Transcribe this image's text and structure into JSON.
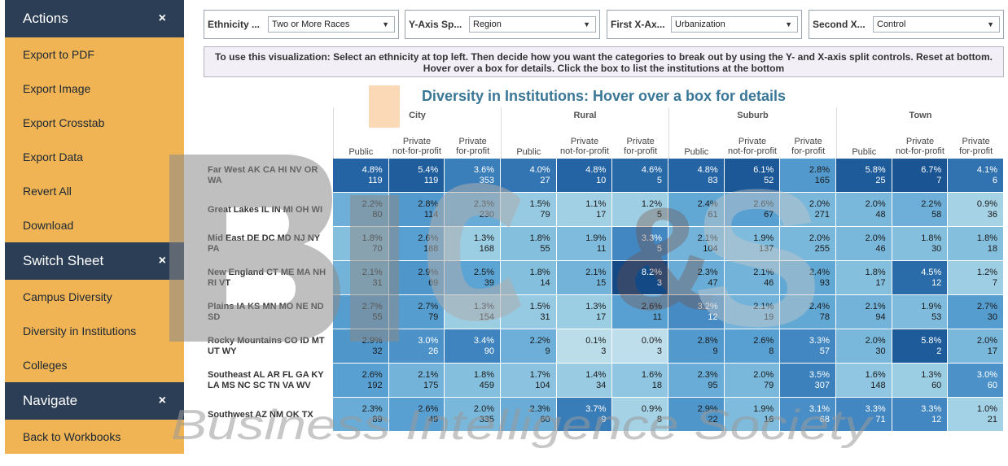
{
  "sidebar": {
    "sections": [
      {
        "title": "Actions",
        "items": [
          "Export to PDF",
          "Export Image",
          "Export Crosstab",
          "Export Data",
          "Revert All",
          "Download"
        ]
      },
      {
        "title": "Switch Sheet",
        "items": [
          "Campus Diversity",
          "Diversity in Institutions",
          "Colleges"
        ]
      },
      {
        "title": "Navigate",
        "items": [
          "Back to Workbooks"
        ]
      }
    ],
    "close_glyph": "×"
  },
  "controls": [
    {
      "label": "Ethnicity ...",
      "value": "Two or More Races"
    },
    {
      "label": "Y-Axis Sp...",
      "value": "Region"
    },
    {
      "label": "First X-Ax...",
      "value": "Urbanization"
    },
    {
      "label": "Second X...",
      "value": "Control"
    }
  ],
  "instructions": "To use this visualization: Select an ethnicity at top left.  Then decide how you want the categories to break out by using the Y- and X-axis split controls.  Reset at bottom.  Hover over a box for details.  Click the box to list the institutions at the bottom",
  "title": "Diversity in Institutions: Hover over a box for details",
  "groups": [
    "City",
    "Rural",
    "Suburb",
    "Town"
  ],
  "subcolumns": [
    [
      "Public"
    ],
    [
      "Private",
      "not-for-profit"
    ],
    [
      "Private",
      "for-profit"
    ]
  ],
  "rows": [
    {
      "label": "Far West AK CA HI NV OR WA",
      "cells": [
        [
          "4.8%",
          "119"
        ],
        [
          "5.4%",
          "119"
        ],
        [
          "3.6%",
          "353"
        ],
        [
          "4.0%",
          "27"
        ],
        [
          "4.8%",
          "10"
        ],
        [
          "4.6%",
          "5"
        ],
        [
          "4.8%",
          "83"
        ],
        [
          "6.1%",
          "52"
        ],
        [
          "2.8%",
          "165"
        ],
        [
          "5.8%",
          "25"
        ],
        [
          "6.7%",
          "7"
        ],
        [
          "4.1%",
          "6"
        ]
      ]
    },
    {
      "label": "Great Lakes IL IN MI OH WI",
      "cells": [
        [
          "2.2%",
          "80"
        ],
        [
          "2.8%",
          "114"
        ],
        [
          "2.3%",
          "230"
        ],
        [
          "1.5%",
          "79"
        ],
        [
          "1.1%",
          "17"
        ],
        [
          "1.2%",
          "5"
        ],
        [
          "2.4%",
          "61"
        ],
        [
          "2.6%",
          "67"
        ],
        [
          "2.0%",
          "271"
        ],
        [
          "2.0%",
          "48"
        ],
        [
          "2.2%",
          "58"
        ],
        [
          "0.9%",
          "36"
        ]
      ]
    },
    {
      "label": "Mid East DE DC MD NJ NY PA",
      "cells": [
        [
          "1.8%",
          "70"
        ],
        [
          "2.6%",
          "188"
        ],
        [
          "1.3%",
          "168"
        ],
        [
          "1.8%",
          "55"
        ],
        [
          "1.9%",
          "11"
        ],
        [
          "3.3%",
          "5"
        ],
        [
          "2.1%",
          "104"
        ],
        [
          "1.9%",
          "137"
        ],
        [
          "2.0%",
          "255"
        ],
        [
          "2.0%",
          "46"
        ],
        [
          "1.8%",
          "30"
        ],
        [
          "1.8%",
          "18"
        ]
      ]
    },
    {
      "label": "New England CT ME MA NH RI VT",
      "cells": [
        [
          "2.1%",
          "31"
        ],
        [
          "2.9%",
          "69"
        ],
        [
          "2.5%",
          "39"
        ],
        [
          "1.8%",
          "14"
        ],
        [
          "2.1%",
          "15"
        ],
        [
          "8.2%",
          "3"
        ],
        [
          "2.3%",
          "47"
        ],
        [
          "2.1%",
          "46"
        ],
        [
          "2.4%",
          "93"
        ],
        [
          "1.8%",
          "17"
        ],
        [
          "4.5%",
          "12"
        ],
        [
          "1.2%",
          "7"
        ]
      ]
    },
    {
      "label": "Plains IA KS MN MO NE ND SD",
      "cells": [
        [
          "2.7%",
          "55"
        ],
        [
          "2.7%",
          "79"
        ],
        [
          "1.3%",
          "154"
        ],
        [
          "1.5%",
          "31"
        ],
        [
          "1.3%",
          "17"
        ],
        [
          "2.6%",
          "11"
        ],
        [
          "3.2%",
          "12"
        ],
        [
          "2.1%",
          "19"
        ],
        [
          "2.4%",
          "78"
        ],
        [
          "2.1%",
          "94"
        ],
        [
          "1.9%",
          "53"
        ],
        [
          "2.7%",
          "30"
        ]
      ]
    },
    {
      "label": "Rocky Mountains CO ID MT UT WY",
      "cells": [
        [
          "2.9%",
          "32"
        ],
        [
          "3.0%",
          "26"
        ],
        [
          "3.4%",
          "90"
        ],
        [
          "2.2%",
          "9"
        ],
        [
          "0.1%",
          "3"
        ],
        [
          "0.0%",
          "3"
        ],
        [
          "2.8%",
          "9"
        ],
        [
          "2.6%",
          "8"
        ],
        [
          "3.3%",
          "57"
        ],
        [
          "2.0%",
          "30"
        ],
        [
          "5.8%",
          "2"
        ],
        [
          "2.0%",
          "17"
        ]
      ]
    },
    {
      "label": "Southeast AL AR FL GA KY LA MS NC SC TN VA WV",
      "cells": [
        [
          "2.6%",
          "192"
        ],
        [
          "2.1%",
          "175"
        ],
        [
          "1.8%",
          "459"
        ],
        [
          "1.7%",
          "104"
        ],
        [
          "1.4%",
          "34"
        ],
        [
          "1.6%",
          "18"
        ],
        [
          "2.3%",
          "95"
        ],
        [
          "2.0%",
          "79"
        ],
        [
          "3.5%",
          "307"
        ],
        [
          "1.6%",
          "148"
        ],
        [
          "1.3%",
          "60"
        ],
        [
          "3.0%",
          "60"
        ]
      ]
    },
    {
      "label": "Southwest AZ NM OK TX",
      "cells": [
        [
          "2.3%",
          "89"
        ],
        [
          "2.6%",
          "49"
        ],
        [
          "2.0%",
          "335"
        ],
        [
          "2.3%",
          "60"
        ],
        [
          "3.7%",
          "9"
        ],
        [
          "0.9%",
          "8"
        ],
        [
          "2.9%",
          "22"
        ],
        [
          "1.9%",
          "16"
        ],
        [
          "3.1%",
          "68"
        ],
        [
          "3.3%",
          "71"
        ],
        [
          "3.3%",
          "12"
        ],
        [
          "1.0%",
          "21"
        ]
      ]
    }
  ],
  "watermark": {
    "logo": "BIc&S",
    "text": "Business Intelligence Society"
  }
}
